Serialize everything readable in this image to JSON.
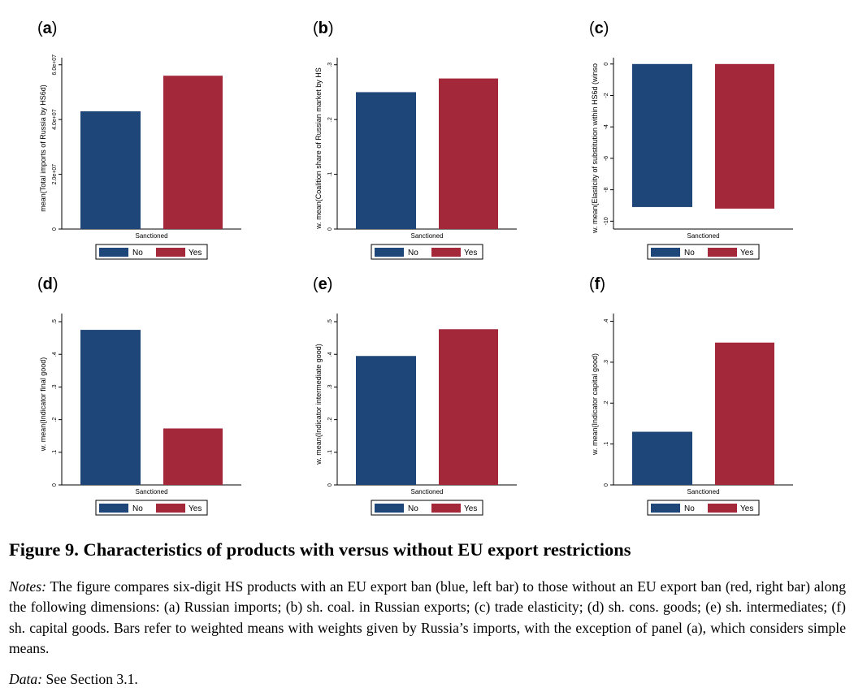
{
  "legend": {
    "no_label": "No",
    "yes_label": "Yes"
  },
  "colors": {
    "no": "#1f4678",
    "yes": "#a3283a",
    "axis": "#000000"
  },
  "figure": {
    "title": "Figure 9. Characteristics of products with versus without EU export restrictions",
    "notes_label": "Notes:",
    "notes_text": " The figure compares six-digit HS products with an EU export ban (blue, left bar) to those without an EU export ban (red, right bar) along the following dimensions: (a) Russian imports; (b) sh. coal. in Russian exports; (c) trade elasticity; (d) sh. cons. goods; (e) sh. intermediates; (f) sh. capital goods. Bars refer to weighted means with weights given by Russia’s imports, with the exception of panel (a), which considers simple means.",
    "data_label": "Data:",
    "data_text": " See Section 3.1."
  },
  "chart_data": [
    {
      "type": "bar",
      "panel": "a",
      "xlabel": "Sanctioned",
      "ylabel": "mean(Total imports of Russia by HS6d)",
      "categories": [
        "No",
        "Yes"
      ],
      "values": [
        43000000,
        56000000
      ],
      "ylim": [
        0,
        62000000
      ],
      "ticks": [
        0,
        20000000,
        40000000,
        60000000
      ],
      "tick_labels": [
        "0",
        "2.0e+07",
        "4.0e+07",
        "6.0e+07"
      ],
      "grid": false,
      "legend_position": "bottom"
    },
    {
      "type": "bar",
      "panel": "b",
      "xlabel": "Sanctioned",
      "ylabel": "w. mean(Coalition share of Russian market by HS",
      "categories": [
        "No",
        "Yes"
      ],
      "values": [
        0.25,
        0.275
      ],
      "ylim": [
        0,
        0.31
      ],
      "ticks": [
        0,
        0.1,
        0.2,
        0.3
      ],
      "tick_labels": [
        "0",
        ".1",
        ".2",
        ".3"
      ],
      "grid": false,
      "legend_position": "bottom"
    },
    {
      "type": "bar",
      "panel": "c",
      "xlabel": "Sanctioned",
      "ylabel": "w. mean(Elasticity of substitution within HS6d (winso",
      "categories": [
        "No",
        "Yes"
      ],
      "values": [
        -9.1,
        -9.2
      ],
      "ylim": [
        -10.5,
        0.3
      ],
      "ticks": [
        0,
        -2,
        -4,
        -6,
        -8,
        -10
      ],
      "tick_labels": [
        "0",
        "-2",
        "-4",
        "-6",
        "-8",
        "-10"
      ],
      "grid": false,
      "legend_position": "bottom"
    },
    {
      "type": "bar",
      "panel": "d",
      "xlabel": "Sanctioned",
      "ylabel": "w. mean(Indicator final good)",
      "categories": [
        "No",
        "Yes"
      ],
      "values": [
        0.475,
        0.173
      ],
      "ylim": [
        0,
        0.52
      ],
      "ticks": [
        0,
        0.1,
        0.2,
        0.3,
        0.4,
        0.5
      ],
      "tick_labels": [
        "0",
        ".1",
        ".2",
        ".3",
        ".4",
        ".5"
      ],
      "grid": false,
      "legend_position": "bottom"
    },
    {
      "type": "bar",
      "panel": "e",
      "xlabel": "Sanctioned",
      "ylabel": "w. mean(Indicator intermediate good)",
      "categories": [
        "No",
        "Yes"
      ],
      "values": [
        0.395,
        0.477
      ],
      "ylim": [
        0,
        0.52
      ],
      "ticks": [
        0,
        0.1,
        0.2,
        0.3,
        0.4,
        0.5
      ],
      "tick_labels": [
        "0",
        ".1",
        ".2",
        ".3",
        ".4",
        ".5"
      ],
      "grid": false,
      "legend_position": "bottom"
    },
    {
      "type": "bar",
      "panel": "f",
      "xlabel": "Sanctioned",
      "ylabel": "w. mean(Indicator capital good)",
      "categories": [
        "No",
        "Yes"
      ],
      "values": [
        0.13,
        0.348
      ],
      "ylim": [
        0,
        0.415
      ],
      "ticks": [
        0,
        0.1,
        0.2,
        0.3,
        0.4
      ],
      "tick_labels": [
        "0",
        ".1",
        ".2",
        ".3",
        ".4"
      ],
      "grid": false,
      "legend_position": "bottom"
    }
  ]
}
